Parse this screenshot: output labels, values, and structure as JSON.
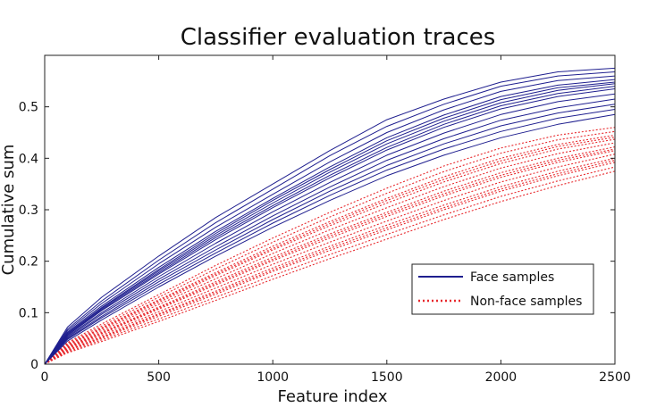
{
  "chart_data": {
    "type": "line",
    "title": "Classifier evaluation traces",
    "xlabel": "Feature index",
    "ylabel": "Cumulative sum",
    "xlim": [
      0,
      2500
    ],
    "ylim": [
      0,
      0.6
    ],
    "x_ticks": [
      {
        "value": 0,
        "label": "0"
      },
      {
        "value": 500,
        "label": "500"
      },
      {
        "value": 1000,
        "label": "1000"
      },
      {
        "value": 1500,
        "label": "1500"
      },
      {
        "value": 2000,
        "label": "2000"
      },
      {
        "value": 2500,
        "label": "2500"
      }
    ],
    "y_ticks": [
      {
        "value": 0,
        "label": "0"
      },
      {
        "value": 0.1,
        "label": "0.1"
      },
      {
        "value": 0.2,
        "label": "0.2"
      },
      {
        "value": 0.3,
        "label": "0.3"
      },
      {
        "value": 0.4,
        "label": "0.4"
      },
      {
        "value": 0.5,
        "label": "0.5"
      }
    ],
    "grid": false,
    "legend_position": "bottom-right",
    "x": [
      0,
      100,
      250,
      500,
      750,
      1000,
      1250,
      1500,
      1750,
      2000,
      2250,
      2500
    ],
    "series": [
      {
        "name": "Face samples",
        "color": "#1f1f8f",
        "style": "solid",
        "traces": [
          [
            0,
            0.072,
            0.13,
            0.21,
            0.285,
            0.35,
            0.415,
            0.475,
            0.515,
            0.548,
            0.568,
            0.575
          ],
          [
            0,
            0.068,
            0.123,
            0.202,
            0.275,
            0.34,
            0.405,
            0.462,
            0.505,
            0.54,
            0.56,
            0.568
          ],
          [
            0,
            0.065,
            0.118,
            0.195,
            0.266,
            0.33,
            0.393,
            0.45,
            0.494,
            0.53,
            0.551,
            0.56
          ],
          [
            0,
            0.062,
            0.113,
            0.188,
            0.258,
            0.322,
            0.383,
            0.44,
            0.484,
            0.52,
            0.542,
            0.553
          ],
          [
            0,
            0.059,
            0.108,
            0.181,
            0.25,
            0.313,
            0.373,
            0.428,
            0.472,
            0.508,
            0.532,
            0.545
          ],
          [
            0,
            0.056,
            0.104,
            0.175,
            0.242,
            0.304,
            0.362,
            0.416,
            0.46,
            0.496,
            0.52,
            0.535
          ],
          [
            0,
            0.054,
            0.1,
            0.17,
            0.235,
            0.296,
            0.353,
            0.406,
            0.449,
            0.485,
            0.51,
            0.525
          ],
          [
            0,
            0.052,
            0.097,
            0.165,
            0.228,
            0.288,
            0.344,
            0.396,
            0.438,
            0.474,
            0.498,
            0.515
          ],
          [
            0,
            0.05,
            0.093,
            0.16,
            0.222,
            0.281,
            0.336,
            0.386,
            0.428,
            0.463,
            0.488,
            0.505
          ],
          [
            0,
            0.048,
            0.09,
            0.155,
            0.216,
            0.274,
            0.328,
            0.377,
            0.418,
            0.452,
            0.478,
            0.495
          ],
          [
            0,
            0.045,
            0.086,
            0.15,
            0.21,
            0.266,
            0.318,
            0.366,
            0.406,
            0.44,
            0.466,
            0.485
          ],
          [
            0,
            0.06,
            0.11,
            0.184,
            0.254,
            0.318,
            0.378,
            0.434,
            0.478,
            0.514,
            0.537,
            0.548
          ],
          [
            0,
            0.057,
            0.106,
            0.178,
            0.246,
            0.308,
            0.367,
            0.421,
            0.466,
            0.502,
            0.526,
            0.54
          ]
        ]
      },
      {
        "name": "Non-face samples",
        "color": "#e8292d",
        "style": "dotted",
        "traces": [
          [
            0,
            0.042,
            0.078,
            0.135,
            0.192,
            0.245,
            0.295,
            0.342,
            0.385,
            0.42,
            0.445,
            0.46
          ],
          [
            0,
            0.04,
            0.074,
            0.13,
            0.185,
            0.237,
            0.286,
            0.332,
            0.374,
            0.41,
            0.436,
            0.452
          ],
          [
            0,
            0.038,
            0.071,
            0.125,
            0.178,
            0.229,
            0.277,
            0.322,
            0.364,
            0.4,
            0.427,
            0.445
          ],
          [
            0,
            0.036,
            0.068,
            0.12,
            0.172,
            0.222,
            0.269,
            0.313,
            0.354,
            0.39,
            0.418,
            0.437
          ],
          [
            0,
            0.034,
            0.065,
            0.116,
            0.166,
            0.215,
            0.261,
            0.304,
            0.345,
            0.381,
            0.409,
            0.43
          ],
          [
            0,
            0.033,
            0.062,
            0.111,
            0.16,
            0.208,
            0.253,
            0.295,
            0.336,
            0.372,
            0.4,
            0.422
          ],
          [
            0,
            0.031,
            0.059,
            0.107,
            0.154,
            0.201,
            0.245,
            0.287,
            0.327,
            0.363,
            0.392,
            0.415
          ],
          [
            0,
            0.03,
            0.056,
            0.102,
            0.148,
            0.194,
            0.237,
            0.278,
            0.318,
            0.354,
            0.383,
            0.408
          ],
          [
            0,
            0.028,
            0.053,
            0.098,
            0.142,
            0.187,
            0.229,
            0.27,
            0.309,
            0.345,
            0.375,
            0.4
          ],
          [
            0,
            0.026,
            0.05,
            0.093,
            0.136,
            0.18,
            0.221,
            0.261,
            0.3,
            0.336,
            0.366,
            0.392
          ],
          [
            0,
            0.024,
            0.047,
            0.088,
            0.13,
            0.172,
            0.213,
            0.252,
            0.29,
            0.326,
            0.356,
            0.383
          ],
          [
            0,
            0.022,
            0.044,
            0.083,
            0.124,
            0.165,
            0.205,
            0.243,
            0.281,
            0.316,
            0.347,
            0.375
          ],
          [
            0,
            0.037,
            0.07,
            0.123,
            0.175,
            0.225,
            0.273,
            0.318,
            0.359,
            0.395,
            0.423,
            0.441
          ],
          [
            0,
            0.032,
            0.06,
            0.109,
            0.157,
            0.204,
            0.249,
            0.291,
            0.331,
            0.367,
            0.396,
            0.418
          ],
          [
            0,
            0.027,
            0.052,
            0.096,
            0.139,
            0.183,
            0.225,
            0.265,
            0.304,
            0.34,
            0.37,
            0.396
          ]
        ]
      }
    ]
  }
}
